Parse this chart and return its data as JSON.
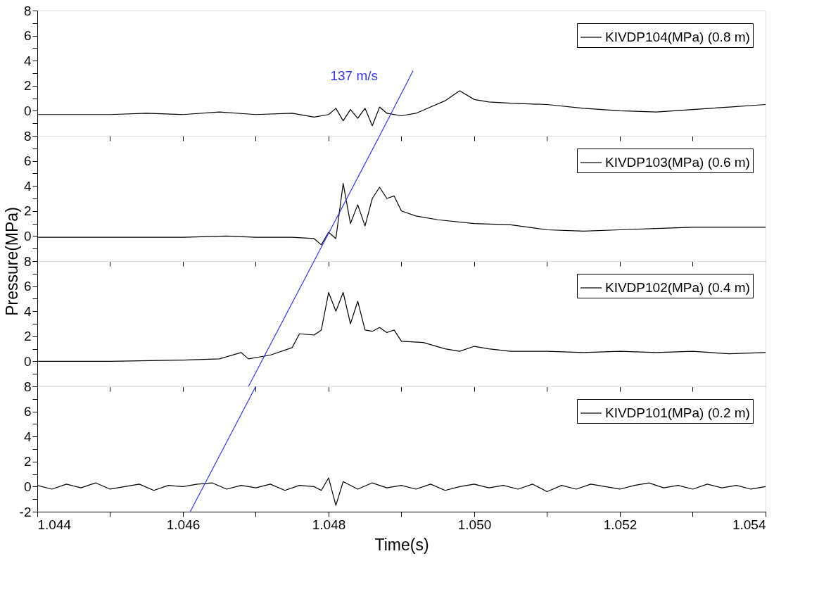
{
  "chart_data": [
    {
      "type": "line",
      "legend": "top right",
      "tick_labels": "y",
      "xlim": [
        1.044,
        1.054
      ],
      "ylim": [
        -2,
        8
      ],
      "xticks": [
        {
          "value": 1.044,
          "label": null
        },
        {
          "value": 1.045,
          "label": null
        },
        {
          "value": 1.046,
          "label": null
        },
        {
          "value": 1.047,
          "label": null
        },
        {
          "value": 1.048,
          "label": null
        },
        {
          "value": 1.049,
          "label": null
        },
        {
          "value": 1.05,
          "label": null
        },
        {
          "value": 1.051,
          "label": null
        },
        {
          "value": 1.052,
          "label": null
        },
        {
          "value": 1.053,
          "label": null
        },
        {
          "value": 1.054,
          "label": null
        }
      ],
      "yticks": [
        {
          "value": -2,
          "label": null
        },
        {
          "value": -1,
          "label": null
        },
        0,
        {
          "value": 1,
          "label": null
        },
        2,
        {
          "value": 3,
          "label": null
        },
        4,
        {
          "value": 5,
          "label": null
        },
        6,
        {
          "value": 7,
          "label": null
        },
        8
      ],
      "annotations": [
        "137 m/s"
      ],
      "series": [
        {
          "name": "KIVDP104(MPa) (0.8 m)",
          "color": "#000000",
          "x": [
            1.044,
            1.0445,
            1.045,
            1.0455,
            1.046,
            1.0465,
            1.047,
            1.0475,
            1.0478,
            1.048,
            1.0481,
            1.0482,
            1.0483,
            1.0484,
            1.0485,
            1.0486,
            1.0487,
            1.0488,
            1.049,
            1.0492,
            1.0494,
            1.0496,
            1.0497,
            1.0498,
            1.05,
            1.0502,
            1.0505,
            1.051,
            1.0515,
            1.052,
            1.0525,
            1.053,
            1.0535,
            1.054
          ],
          "values": [
            -0.3,
            -0.3,
            -0.3,
            -0.2,
            -0.3,
            -0.1,
            -0.3,
            -0.2,
            -0.5,
            -0.3,
            0.2,
            -0.8,
            0.1,
            -0.6,
            0.2,
            -1.2,
            0.3,
            -0.2,
            -0.4,
            -0.2,
            0.3,
            0.8,
            1.2,
            1.6,
            0.9,
            0.7,
            0.6,
            0.5,
            0.2,
            0.0,
            -0.1,
            0.1,
            0.3,
            0.5
          ]
        },
        {
          "type": "line",
          "color": "#3333ff",
          "x": [
            1.0487,
            1.04916
          ],
          "values": [
            -2,
            3.2
          ]
        }
      ]
    },
    {
      "type": "line",
      "legend": "top right",
      "tick_labels": "y",
      "xlim": [
        1.044,
        1.054
      ],
      "ylim": [
        -2,
        8
      ],
      "xticks": [
        {
          "value": 1.044,
          "label": null
        },
        {
          "value": 1.045,
          "label": null
        },
        {
          "value": 1.046,
          "label": null
        },
        {
          "value": 1.047,
          "label": null
        },
        {
          "value": 1.048,
          "label": null
        },
        {
          "value": 1.049,
          "label": null
        },
        {
          "value": 1.05,
          "label": null
        },
        {
          "value": 1.051,
          "label": null
        },
        {
          "value": 1.052,
          "label": null
        },
        {
          "value": 1.053,
          "label": null
        },
        {
          "value": 1.054,
          "label": null
        }
      ],
      "yticks": [
        {
          "value": -2,
          "label": null
        },
        {
          "value": -1,
          "label": null
        },
        0,
        {
          "value": 1,
          "label": null
        },
        2,
        {
          "value": 3,
          "label": null
        },
        4,
        {
          "value": 5,
          "label": null
        },
        6,
        {
          "value": 7,
          "label": null
        },
        8
      ],
      "ylabel": "Pressure(MPa)",
      "series": [
        {
          "name": "KIVDP103(MPa) (0.6 m)",
          "color": "#000000",
          "x": [
            1.044,
            1.045,
            1.046,
            1.0466,
            1.047,
            1.0475,
            1.0478,
            1.0479,
            1.048,
            1.0481,
            1.0482,
            1.0483,
            1.0484,
            1.0485,
            1.0486,
            1.0487,
            1.0488,
            1.0489,
            1.049,
            1.0492,
            1.0495,
            1.05,
            1.0505,
            1.051,
            1.0515,
            1.052,
            1.0525,
            1.053,
            1.0535,
            1.054
          ],
          "values": [
            -0.1,
            -0.1,
            -0.1,
            0.0,
            -0.1,
            -0.1,
            -0.2,
            -0.7,
            0.3,
            -0.2,
            4.2,
            1.0,
            2.5,
            0.8,
            3.0,
            3.9,
            3.0,
            3.2,
            2.0,
            1.6,
            1.3,
            1.0,
            0.9,
            0.5,
            0.4,
            0.5,
            0.6,
            0.7,
            0.7,
            0.7
          ]
        },
        {
          "type": "line",
          "color": "#3333ff",
          "x": [
            1.0478,
            1.0487
          ],
          "values": [
            -2,
            8
          ]
        }
      ]
    },
    {
      "type": "line",
      "legend": "top right",
      "tick_labels": "y",
      "xlim": [
        1.044,
        1.054
      ],
      "ylim": [
        -2,
        8
      ],
      "xticks": [
        {
          "value": 1.044,
          "label": null
        },
        {
          "value": 1.045,
          "label": null
        },
        {
          "value": 1.046,
          "label": null
        },
        {
          "value": 1.047,
          "label": null
        },
        {
          "value": 1.048,
          "label": null
        },
        {
          "value": 1.049,
          "label": null
        },
        {
          "value": 1.05,
          "label": null
        },
        {
          "value": 1.051,
          "label": null
        },
        {
          "value": 1.052,
          "label": null
        },
        {
          "value": 1.053,
          "label": null
        },
        {
          "value": 1.054,
          "label": null
        }
      ],
      "yticks": [
        {
          "value": -2,
          "label": null
        },
        {
          "value": -1,
          "label": null
        },
        0,
        {
          "value": 1,
          "label": null
        },
        2,
        {
          "value": 3,
          "label": null
        },
        4,
        {
          "value": 5,
          "label": null
        },
        6,
        {
          "value": 7,
          "label": null
        },
        8
      ],
      "series": [
        {
          "name": "KIVDP102(MPa) (0.4 m)",
          "color": "#000000",
          "x": [
            1.044,
            1.045,
            1.046,
            1.0465,
            1.0468,
            1.0469,
            1.0472,
            1.0475,
            1.0476,
            1.0478,
            1.0479,
            1.048,
            1.0481,
            1.0482,
            1.0483,
            1.0484,
            1.0485,
            1.0486,
            1.0487,
            1.0488,
            1.0489,
            1.049,
            1.0493,
            1.0496,
            1.0498,
            1.05,
            1.0502,
            1.0505,
            1.051,
            1.0515,
            1.052,
            1.0525,
            1.053,
            1.0535,
            1.054
          ],
          "values": [
            0.0,
            0.0,
            0.1,
            0.2,
            0.7,
            0.2,
            0.5,
            1.1,
            2.2,
            2.1,
            2.5,
            5.5,
            4.0,
            5.5,
            3.0,
            4.8,
            2.5,
            2.4,
            2.7,
            2.3,
            2.5,
            1.6,
            1.5,
            1.0,
            0.8,
            1.2,
            1.0,
            0.8,
            0.8,
            0.7,
            0.8,
            0.7,
            0.8,
            0.6,
            0.7
          ]
        },
        {
          "type": "line",
          "color": "#3333ff",
          "x": [
            1.0469,
            1.0478
          ],
          "values": [
            -2,
            8
          ]
        }
      ]
    },
    {
      "type": "line",
      "legend": "top right",
      "xlim": [
        1.044,
        1.054
      ],
      "ylim": [
        -2,
        8
      ],
      "xlabel": "Time(s)",
      "xticks": [
        1.044,
        {
          "value": 1.045,
          "label": null
        },
        1.046,
        {
          "value": 1.047,
          "label": null
        },
        1.048,
        {
          "value": 1.049,
          "label": null
        },
        {
          "value": 1.05,
          "label": "1.050"
        },
        {
          "value": 1.051,
          "label": null
        },
        1.052,
        {
          "value": 1.053,
          "label": null
        },
        1.054
      ],
      "yticks": [
        -2,
        {
          "value": -1,
          "label": null
        },
        0,
        {
          "value": 1,
          "label": null
        },
        2,
        {
          "value": 3,
          "label": null
        },
        4,
        {
          "value": 5,
          "label": null
        },
        6,
        {
          "value": 7,
          "label": null
        },
        8
      ],
      "series": [
        {
          "name": "KIVDP101(MPa) (0.2 m)",
          "color": "#000000",
          "x": [
            1.044,
            1.0442,
            1.0444,
            1.0446,
            1.0448,
            1.045,
            1.0452,
            1.0454,
            1.0456,
            1.0458,
            1.046,
            1.0462,
            1.0464,
            1.0466,
            1.0468,
            1.047,
            1.0472,
            1.0474,
            1.0476,
            1.0478,
            1.0479,
            1.048,
            1.0481,
            1.0482,
            1.0484,
            1.0486,
            1.0488,
            1.049,
            1.0492,
            1.0494,
            1.0496,
            1.0498,
            1.05,
            1.0502,
            1.0504,
            1.0506,
            1.0508,
            1.051,
            1.0512,
            1.0514,
            1.0516,
            1.0518,
            1.052,
            1.0522,
            1.0524,
            1.0526,
            1.0528,
            1.053,
            1.0532,
            1.0534,
            1.0536,
            1.0538,
            1.054
          ],
          "values": [
            0.1,
            -0.2,
            0.2,
            -0.1,
            0.3,
            -0.2,
            0.0,
            0.2,
            -0.3,
            0.1,
            0.0,
            0.2,
            0.3,
            -0.2,
            0.1,
            -0.1,
            0.2,
            -0.3,
            0.1,
            0.0,
            -0.3,
            0.7,
            -1.5,
            0.4,
            -0.2,
            0.3,
            -0.1,
            0.1,
            -0.2,
            0.2,
            -0.3,
            0.0,
            0.2,
            -0.1,
            0.1,
            -0.2,
            0.2,
            -0.4,
            0.1,
            -0.2,
            0.2,
            0.0,
            -0.2,
            0.1,
            0.3,
            -0.1,
            0.1,
            -0.2,
            0.2,
            -0.1,
            0.1,
            -0.2,
            0.0
          ]
        },
        {
          "type": "line",
          "color": "#3333ff",
          "x": [
            1.0461,
            1.047
          ],
          "values": [
            -2,
            8
          ]
        }
      ]
    }
  ]
}
